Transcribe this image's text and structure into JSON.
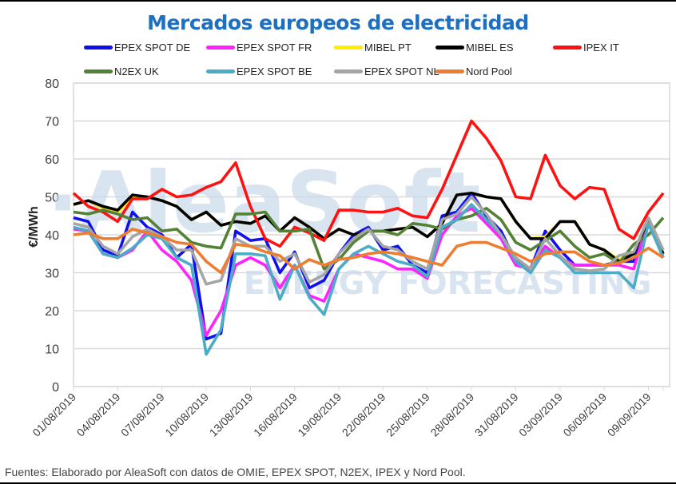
{
  "chart_data": {
    "type": "line",
    "title": "Mercados europeos de electricidad",
    "xlabel": "",
    "ylabel": "€/MWh",
    "ylim": [
      0,
      80
    ],
    "yticks": [
      0,
      10,
      20,
      30,
      40,
      50,
      60,
      70,
      80
    ],
    "grid": true,
    "legend_position": "top",
    "watermark": {
      "main": "AleaSoft",
      "sub": "ENERGY FORECASTING"
    },
    "x": [
      "01/08/2019",
      "02/08/2019",
      "03/08/2019",
      "04/08/2019",
      "05/08/2019",
      "06/08/2019",
      "07/08/2019",
      "08/08/2019",
      "09/08/2019",
      "10/08/2019",
      "11/08/2019",
      "12/08/2019",
      "13/08/2019",
      "14/08/2019",
      "15/08/2019",
      "16/08/2019",
      "17/08/2019",
      "18/08/2019",
      "19/08/2019",
      "20/08/2019",
      "21/08/2019",
      "22/08/2019",
      "23/08/2019",
      "24/08/2019",
      "25/08/2019",
      "26/08/2019",
      "27/08/2019",
      "28/08/2019",
      "29/08/2019",
      "30/08/2019",
      "31/08/2019",
      "01/09/2019",
      "02/09/2019",
      "03/09/2019",
      "04/09/2019",
      "05/09/2019",
      "06/09/2019",
      "07/09/2019",
      "08/09/2019",
      "09/09/2019",
      "10/09/2019"
    ],
    "xtick_labels": [
      "01/08/2019",
      "04/08/2019",
      "07/08/2019",
      "10/08/2019",
      "13/08/2019",
      "16/08/2019",
      "19/08/2019",
      "22/08/2019",
      "25/08/2019",
      "28/08/2019",
      "31/08/2019",
      "03/09/2019",
      "06/09/2019",
      "09/09/2019"
    ],
    "series": [
      {
        "name": "EPEX SPOT DE",
        "color": "#1010ee",
        "values": [
          44.5,
          43.5,
          36,
          34.5,
          46,
          42,
          40,
          34,
          37.5,
          12.5,
          14,
          41,
          38.5,
          39,
          30,
          35.5,
          26,
          28,
          35,
          40,
          42,
          36,
          37,
          32,
          30,
          45,
          46,
          51,
          45,
          41,
          33,
          31,
          41,
          36,
          32,
          32,
          32,
          33,
          33,
          44,
          34
        ]
      },
      {
        "name": "EPEX SPOT FR",
        "color": "#ff22ff",
        "values": [
          41.5,
          41,
          35,
          34,
          36,
          41,
          36,
          33,
          28,
          13.5,
          20,
          32,
          34,
          32,
          26,
          32,
          24,
          22.5,
          31,
          35,
          34,
          33,
          31,
          31,
          28.5,
          40,
          45,
          47,
          43,
          39,
          32,
          31,
          37,
          34,
          32,
          32,
          32,
          32,
          31,
          44,
          35
        ]
      },
      {
        "name": "MIBEL PT",
        "color": "#ffee00",
        "values": [
          48,
          49,
          47,
          46,
          50,
          50,
          49,
          47.5,
          44,
          46,
          42.5,
          43.5,
          43,
          45,
          41,
          44.5,
          42,
          39,
          41.5,
          40,
          41,
          41,
          41.5,
          42,
          39.5,
          43,
          50.5,
          51,
          50,
          49.5,
          43.5,
          39,
          39.5,
          43.5,
          43.5,
          37.5,
          36,
          33.5,
          35,
          44,
          35
        ]
      },
      {
        "name": "MIBEL ES",
        "color": "#000000",
        "values": [
          48,
          49,
          47.5,
          46.5,
          50.5,
          50,
          49,
          47.5,
          44,
          46,
          42.5,
          43.5,
          43,
          45,
          41,
          44.5,
          42,
          39,
          41.5,
          40,
          41,
          41,
          41.5,
          42,
          39.5,
          43,
          50.5,
          51,
          50,
          49.5,
          43.5,
          39,
          39,
          43.5,
          43.5,
          37.5,
          36,
          33,
          35,
          44,
          35
        ]
      },
      {
        "name": "IPEX IT",
        "color": "#ff1111",
        "values": [
          51,
          47.5,
          46,
          43.5,
          49.5,
          49.5,
          52,
          50,
          50.5,
          52.5,
          54,
          59,
          47.5,
          39,
          37,
          42,
          40.5,
          38.5,
          46.5,
          46.5,
          46,
          46,
          47,
          45,
          44.5,
          52,
          61,
          70,
          65.5,
          59.5,
          50,
          49.5,
          61,
          53,
          49.5,
          52.5,
          52,
          41.5,
          39,
          46,
          51
        ]
      },
      {
        "name": "N2EX UK",
        "color": "#538135",
        "values": [
          46,
          45.5,
          46.5,
          45.5,
          44,
          44.5,
          41,
          41.5,
          38,
          37,
          36.5,
          45.5,
          45.5,
          46,
          41,
          41,
          41.5,
          31,
          33.5,
          38,
          41,
          41,
          40,
          43,
          42.5,
          41.5,
          44,
          45,
          47,
          44,
          38,
          36,
          38.5,
          41,
          37,
          34,
          35,
          32.5,
          37.5,
          40,
          44.5
        ]
      },
      {
        "name": "EPEX SPOT BE",
        "color": "#4bacc6",
        "values": [
          42,
          41,
          35,
          34,
          36.5,
          40,
          39,
          34,
          32,
          8.5,
          15,
          35,
          35,
          34.5,
          23,
          32,
          23.5,
          19,
          31,
          35,
          37,
          35,
          33,
          32,
          29,
          42,
          44,
          48,
          44,
          40,
          33,
          30,
          36,
          34,
          30,
          30,
          30,
          30,
          26,
          43,
          34
        ]
      },
      {
        "name": "EPEX SPOT NL",
        "color": "#a5a5a5",
        "values": [
          43,
          42,
          37,
          35,
          39.5,
          41.5,
          39.5,
          36,
          36,
          27,
          28,
          39,
          37,
          37,
          33,
          35,
          27.5,
          29.5,
          35,
          39,
          41.5,
          37,
          36,
          33,
          31,
          44,
          45.5,
          50,
          45.5,
          40,
          34,
          31,
          39,
          34.5,
          31,
          30.5,
          31,
          34.5,
          35.5,
          44.5,
          36
        ]
      },
      {
        "name": "Nord Pool",
        "color": "#ed7d31",
        "values": [
          40,
          40.5,
          39,
          39,
          41.5,
          40.5,
          39.5,
          38,
          37.5,
          33,
          30,
          37.5,
          37,
          35.5,
          34.5,
          31,
          33.5,
          32,
          33.5,
          34,
          35,
          35.5,
          35,
          34,
          33,
          32,
          37,
          38,
          38,
          36.5,
          35,
          33,
          35,
          35.5,
          35.5,
          33,
          32,
          32.5,
          34,
          36.5,
          34
        ]
      }
    ]
  },
  "legend": [
    {
      "label": "EPEX SPOT DE",
      "color": "#1010ee"
    },
    {
      "label": "EPEX SPOT FR",
      "color": "#ff22ff"
    },
    {
      "label": "MIBEL PT",
      "color": "#ffee00"
    },
    {
      "label": "MIBEL ES",
      "color": "#000000"
    },
    {
      "label": "IPEX IT",
      "color": "#ff1111"
    },
    {
      "label": "N2EX UK",
      "color": "#538135"
    },
    {
      "label": "EPEX SPOT BE",
      "color": "#4bacc6"
    },
    {
      "label": "EPEX SPOT NL",
      "color": "#a5a5a5"
    },
    {
      "label": "Nord Pool",
      "color": "#ed7d31"
    }
  ],
  "footer": "Fuentes: Elaborado por AleaSoft con datos de OMIE, EPEX SPOT, N2EX, IPEX y Nord Pool."
}
